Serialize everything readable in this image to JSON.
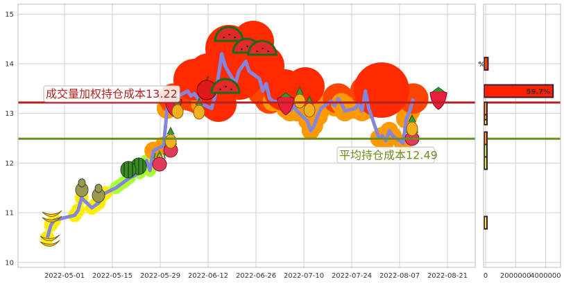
{
  "chart_data": [
    {
      "type": "line",
      "xlabel": "",
      "ylabel": "",
      "ylim": [
        9.9,
        15.2
      ],
      "grid": true,
      "x_tick_labels": [
        "2022-05-01",
        "2022-05-15",
        "2022-05-29",
        "2022-06-12",
        "2022-06-26",
        "2022-07-10",
        "2022-07-24",
        "2022-08-07",
        "2022-08-21"
      ],
      "y_tick_labels": [
        "10",
        "11",
        "12",
        "13",
        "14",
        "15"
      ],
      "series": [
        {
          "color": "#8585dd",
          "x": [
            "2022-04-26",
            "2022-04-27",
            "2022-04-28",
            "2022-05-04",
            "2022-05-05",
            "2022-05-06",
            "2022-05-09",
            "2022-05-10",
            "2022-05-11",
            "2022-05-12",
            "2022-05-13",
            "2022-05-16",
            "2022-05-17",
            "2022-05-18",
            "2022-05-19",
            "2022-05-20",
            "2022-05-23",
            "2022-05-24",
            "2022-05-25",
            "2022-05-26",
            "2022-05-27",
            "2022-05-30",
            "2022-05-31",
            "2022-06-01",
            "2022-06-02",
            "2022-06-06",
            "2022-06-07",
            "2022-06-08",
            "2022-06-09",
            "2022-06-10",
            "2022-06-13",
            "2022-06-14",
            "2022-06-15",
            "2022-06-16",
            "2022-06-17",
            "2022-06-20",
            "2022-06-21",
            "2022-06-22",
            "2022-06-23",
            "2022-06-24",
            "2022-06-27",
            "2022-06-28",
            "2022-06-29",
            "2022-06-30",
            "2022-07-01",
            "2022-07-04",
            "2022-07-05",
            "2022-07-06",
            "2022-07-07",
            "2022-07-08",
            "2022-07-11",
            "2022-07-12",
            "2022-07-13",
            "2022-07-14",
            "2022-07-15",
            "2022-07-18",
            "2022-07-19",
            "2022-07-20",
            "2022-07-21",
            "2022-07-22",
            "2022-07-25",
            "2022-07-26",
            "2022-07-27",
            "2022-07-28",
            "2022-07-29",
            "2022-08-01",
            "2022-08-02",
            "2022-08-03",
            "2022-08-04",
            "2022-08-05",
            "2022-08-08",
            "2022-08-09",
            "2022-08-10",
            "2022-08-11"
          ],
          "values": [
            10.5,
            10.75,
            10.85,
            10.95,
            11.05,
            11.3,
            11.1,
            11.15,
            11.2,
            11.35,
            11.4,
            11.5,
            11.55,
            11.6,
            11.65,
            11.7,
            11.8,
            11.95,
            12.05,
            11.85,
            12.25,
            12.35,
            13.1,
            13.25,
            13.3,
            13.45,
            13.35,
            13.4,
            13.3,
            13.2,
            13.1,
            13.35,
            13.75,
            14.2,
            13.95,
            13.6,
            13.85,
            13.95,
            14.05,
            13.85,
            13.7,
            13.45,
            13.6,
            13.3,
            13.25,
            13.2,
            13.1,
            13.05,
            13.15,
            13.05,
            12.85,
            12.65,
            12.75,
            12.95,
            13.1,
            13.25,
            13.15,
            13.3,
            13.2,
            13.05,
            13.1,
            13.2,
            13.05,
            13.45,
            13.1,
            12.5,
            12.55,
            12.45,
            12.65,
            12.55,
            12.4,
            12.9,
            13.05,
            13.3
          ]
        }
      ],
      "reference_lines": [
        {
          "label": "成交量加权持仓成本13.22",
          "value": 13.22,
          "color": "#b22222"
        },
        {
          "label": "平均持仓成本12.49",
          "value": 12.49,
          "color": "#6b8e23"
        }
      ]
    },
    {
      "type": "bar",
      "orientation": "horizontal",
      "x_tick_labels": [
        "0",
        "2000000",
        "4000000"
      ],
      "xlim": [
        0,
        5000000
      ],
      "bars": [
        {
          "price": 10.8,
          "value": 80000,
          "color": "#ffee00"
        },
        {
          "price": 12.0,
          "value": 30000,
          "color": "#ccff00"
        },
        {
          "price": 12.25,
          "value": 40000,
          "color": "#aaff33"
        },
        {
          "price": 12.5,
          "value": 50000,
          "color": "#ff9900"
        },
        {
          "price": 12.9,
          "value": 30000,
          "color": "#ccff00"
        },
        {
          "price": 13.0,
          "value": 40000,
          "color": "#ff9900"
        },
        {
          "price": 13.1,
          "value": 60000,
          "color": "#ff9900"
        },
        {
          "price": 13.45,
          "value": 4500000,
          "color": "#ff2200",
          "label": "59.7%"
        },
        {
          "price": 14.0,
          "value": 160000,
          "color": "#ff4400",
          "label": "%"
        }
      ]
    }
  ]
}
